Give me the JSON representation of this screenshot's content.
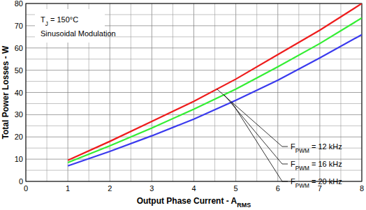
{
  "chart_data": {
    "type": "line",
    "x_label": "Output Phase Current - ARMS",
    "y_label": "Total Power Losses - W",
    "annotations": [
      "TJ = 150°C",
      "Sinusoidal Modulation"
    ],
    "x": [
      1,
      2,
      3,
      4,
      5,
      6,
      7,
      8
    ],
    "series": [
      {
        "name": "FPWM = 12 kHz",
        "color": "#ee1c1c",
        "values": [
          9.5,
          18,
          27,
          36,
          46,
          57,
          68,
          80
        ]
      },
      {
        "name": "FPWM = 16 kHz",
        "color": "#33ee33",
        "values": [
          8.5,
          16,
          24,
          32.5,
          41.5,
          51.5,
          62,
          73.5
        ]
      },
      {
        "name": "FPWM = 20 kHz",
        "color": "#3a3aee",
        "values": [
          7,
          13.5,
          20.5,
          28,
          36.5,
          45.5,
          55.5,
          66
        ]
      }
    ],
    "xlim": [
      0,
      8
    ],
    "ylim": [
      0,
      80
    ],
    "xticks": [
      0,
      1,
      2,
      3,
      4,
      5,
      6,
      7,
      8
    ],
    "yticks": [
      0,
      10,
      20,
      30,
      40,
      50,
      60,
      70,
      80
    ],
    "grid": true
  }
}
